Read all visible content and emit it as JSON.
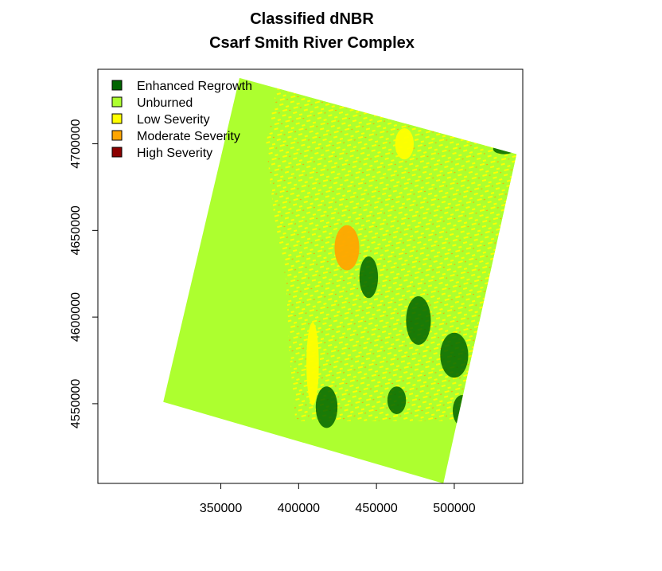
{
  "chart_data": {
    "type": "heatmap",
    "title": "Classified dNBR",
    "subtitle": "Csarf Smith River Complex",
    "xlabel": "",
    "ylabel": "",
    "xlim": [
      271000,
      544000
    ],
    "ylim": [
      4504000,
      4743000
    ],
    "x_ticks": [
      350000,
      400000,
      450000,
      500000
    ],
    "x_tick_labels": [
      "350000",
      "400000",
      "450000",
      "500000"
    ],
    "y_ticks": [
      4550000,
      4600000,
      4650000,
      4700000
    ],
    "y_tick_labels": [
      "4550000",
      "4600000",
      "4650000",
      "4700000"
    ],
    "grid": false,
    "legend_position": "top-left",
    "classes": [
      {
        "label": "Enhanced Regrowth",
        "color": "#006400"
      },
      {
        "label": "Unburned",
        "color": "#adff2f"
      },
      {
        "label": "Low Severity",
        "color": "#ffff00"
      },
      {
        "label": "Moderate Severity",
        "color": "#ffa500"
      },
      {
        "label": "High Severity",
        "color": "#8b0000"
      }
    ],
    "scene_corners": [
      [
        362000,
        4738000
      ],
      [
        540000,
        4694000
      ],
      [
        493000,
        4504000
      ],
      [
        313000,
        4551000
      ]
    ],
    "ocean_boundary": [
      [
        387000,
        4738000
      ],
      [
        379000,
        4700000
      ],
      [
        384000,
        4660000
      ],
      [
        392000,
        4620000
      ],
      [
        394000,
        4580000
      ],
      [
        398000,
        4540000
      ]
    ],
    "regions": [
      {
        "class": "Low Severity",
        "shape": "ellipse",
        "center": [
          409000,
          4573000
        ],
        "radius": [
          4000,
          24000
        ]
      },
      {
        "class": "Moderate Severity",
        "shape": "ellipse",
        "center": [
          431000,
          4640000
        ],
        "radius": [
          8000,
          13000
        ]
      },
      {
        "class": "Low Severity",
        "shape": "ellipse",
        "center": [
          468000,
          4700000
        ],
        "radius": [
          6000,
          9000
        ]
      },
      {
        "class": "Enhanced Regrowth",
        "shape": "ellipse",
        "center": [
          418000,
          4548000
        ],
        "radius": [
          7000,
          12000
        ]
      },
      {
        "class": "Enhanced Regrowth",
        "shape": "ellipse",
        "center": [
          477000,
          4598000
        ],
        "radius": [
          8000,
          14000
        ]
      },
      {
        "class": "Enhanced Regrowth",
        "shape": "ellipse",
        "center": [
          500000,
          4578000
        ],
        "radius": [
          9000,
          13000
        ]
      },
      {
        "class": "Enhanced Regrowth",
        "shape": "ellipse",
        "center": [
          445000,
          4623000
        ],
        "radius": [
          6000,
          12000
        ]
      },
      {
        "class": "Enhanced Regrowth",
        "shape": "ellipse",
        "center": [
          532000,
          4697000
        ],
        "radius": [
          7000,
          3000
        ]
      },
      {
        "class": "Enhanced Regrowth",
        "shape": "ellipse",
        "center": [
          463000,
          4552000
        ],
        "radius": [
          6000,
          8000
        ]
      },
      {
        "class": "Enhanced Regrowth",
        "shape": "ellipse",
        "center": [
          505000,
          4546000
        ],
        "radius": [
          6000,
          9000
        ]
      }
    ]
  }
}
